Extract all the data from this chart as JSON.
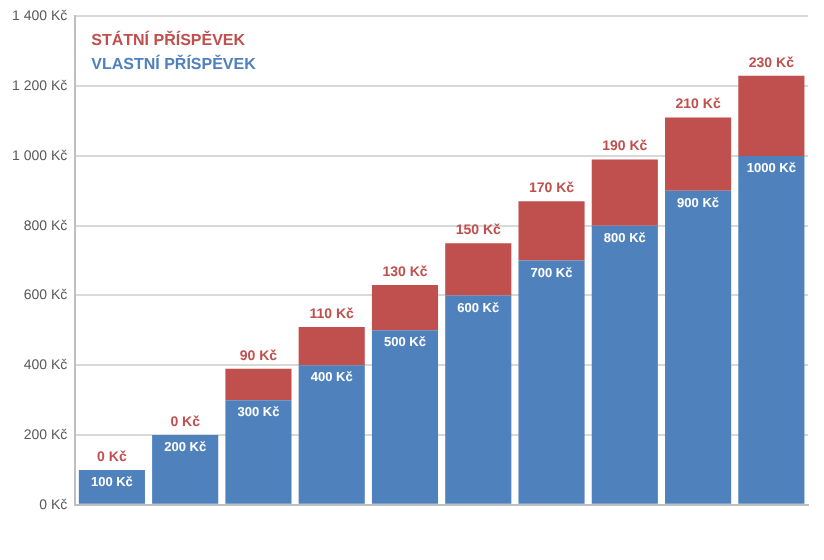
{
  "chart_data": {
    "type": "bar",
    "stacked": true,
    "categories": [
      null,
      null,
      null,
      null,
      null,
      null,
      null,
      null,
      null,
      null
    ],
    "series": [
      {
        "name": "VLASTNÍ PŘÍSPĚVEK",
        "color": "#4f81bd",
        "values": [
          100,
          200,
          300,
          400,
          500,
          600,
          700,
          800,
          900,
          1000
        ],
        "value_labels": [
          "100 Kč",
          "200 Kč",
          "300 Kč",
          "400 Kč",
          "500 Kč",
          "600 Kč",
          "700 Kč",
          "800 Kč",
          "900 Kč",
          "1000 Kč"
        ]
      },
      {
        "name": "STÁTNÍ PŘÍSPĚVEK",
        "color": "#c0504d",
        "values": [
          0,
          0,
          90,
          110,
          130,
          150,
          170,
          190,
          210,
          230
        ],
        "value_labels": [
          "0 Kč",
          "0 Kč",
          "90 Kč",
          "110 Kč",
          "130 Kč",
          "150 Kč",
          "170 Kč",
          "190 Kč",
          "210 Kč",
          "230 Kč"
        ]
      }
    ],
    "ylim": [
      0,
      1400
    ],
    "yticks": [
      {
        "value": 0,
        "label": "0 Kč"
      },
      {
        "value": 200,
        "label": "200 Kč"
      },
      {
        "value": 400,
        "label": "400 Kč"
      },
      {
        "value": 600,
        "label": "600 Kč"
      },
      {
        "value": 800,
        "label": "800 Kč"
      },
      {
        "value": 1000,
        "label": "1 000 Kč"
      },
      {
        "value": 1200,
        "label": "1 200 Kč"
      },
      {
        "value": 1400,
        "label": "1 400 Kč"
      }
    ],
    "grid": "y",
    "legend": "top left"
  }
}
